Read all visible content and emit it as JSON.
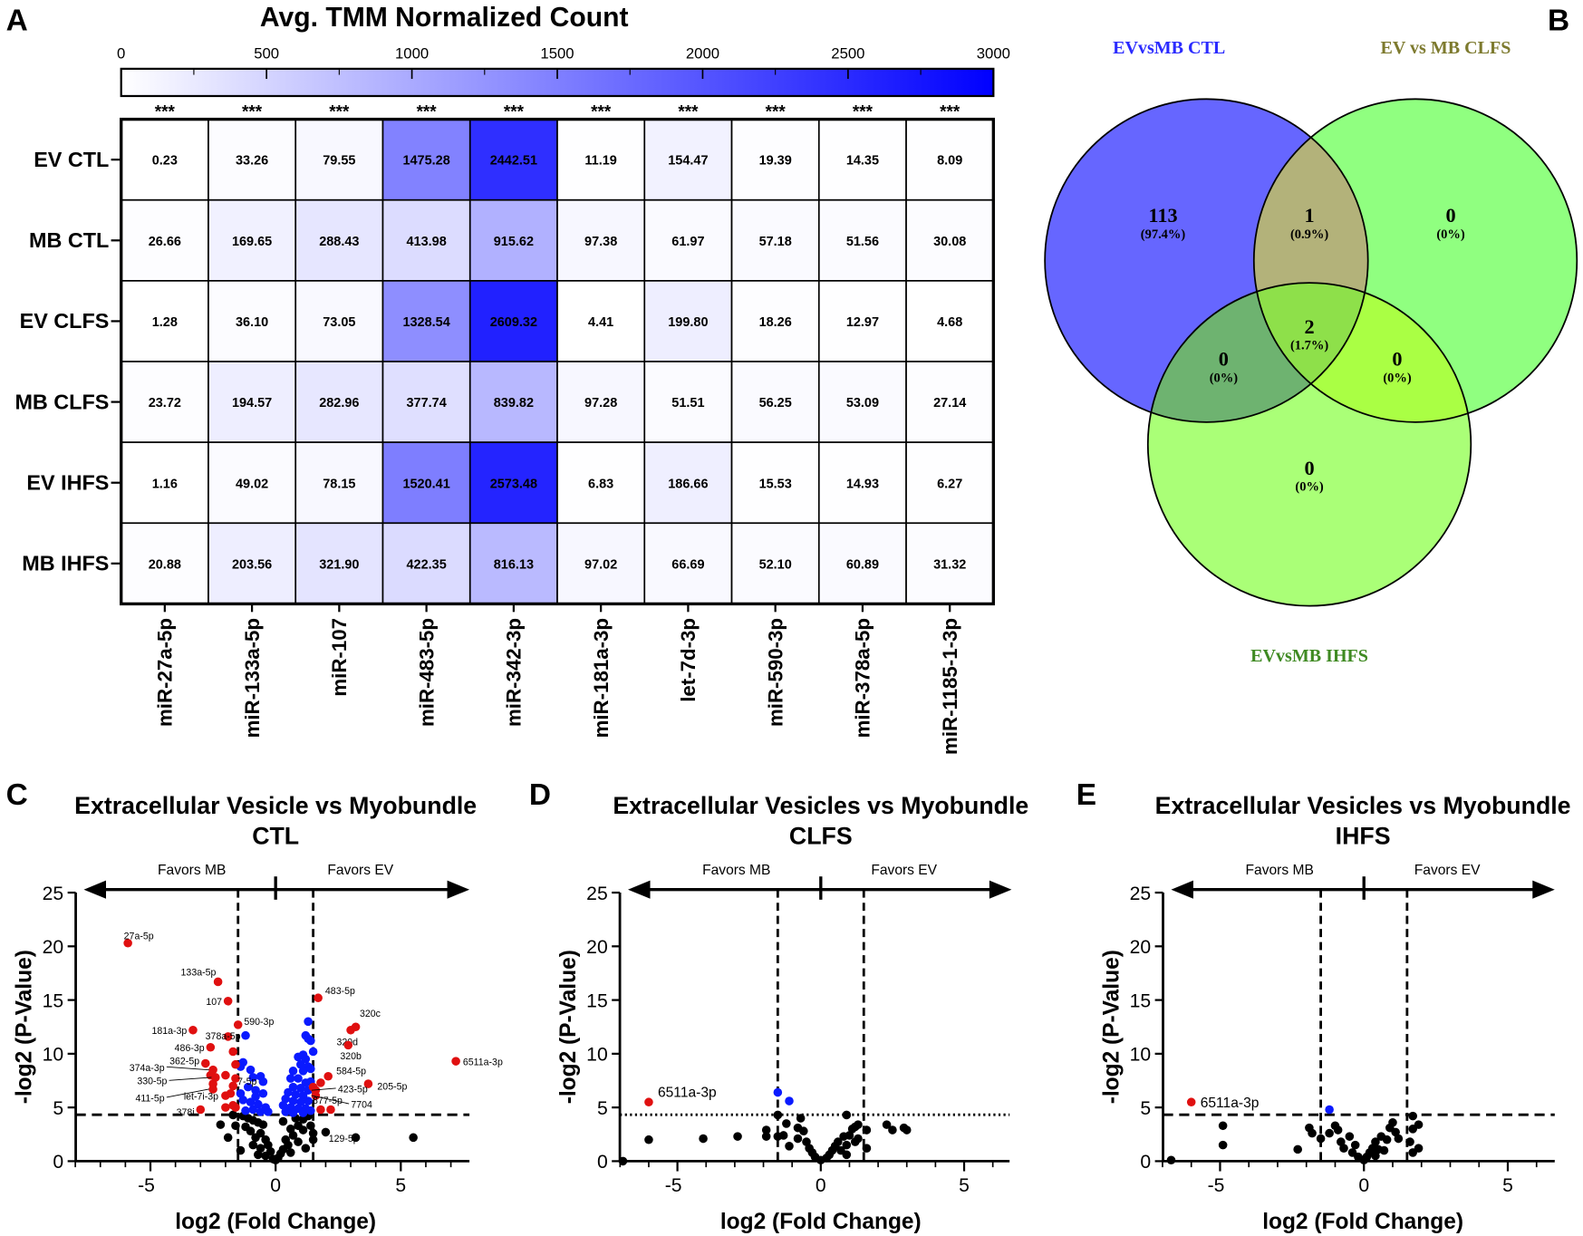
{
  "panel_letters": [
    "A",
    "B",
    "C",
    "D",
    "E"
  ],
  "chart_data": [
    {
      "type": "heatmap",
      "panel": "A",
      "title": "Avg. TMM Normalized Count",
      "colorbar": {
        "range": [
          0,
          3000
        ],
        "ticks": [
          "0",
          "500",
          "1000",
          "1500",
          "2000",
          "2500",
          "3000"
        ],
        "low_color": "#ffffff",
        "high_color": "#0000ff"
      },
      "significance": [
        "***",
        "***",
        "***",
        "***",
        "***",
        "***",
        "***",
        "***",
        "***",
        "***"
      ],
      "rows": [
        "EV CTL",
        "MB CTL",
        "EV CLFS",
        "MB CLFS",
        "EV IHFS",
        "MB IHFS"
      ],
      "columns": [
        "miR-27a-5p",
        "miR-133a-5p",
        "miR-107",
        "miR-483-5p",
        "miR-342-3p",
        "miR-181a-3p",
        "let-7d-3p",
        "miR-590-3p",
        "miR-378a-5p",
        "miR-1185-1-3p"
      ],
      "values": [
        [
          "0.23",
          "33.26",
          "79.55",
          "1475.28",
          "2442.51",
          "11.19",
          "154.47",
          "19.39",
          "14.35",
          "8.09"
        ],
        [
          "26.66",
          "169.65",
          "288.43",
          "413.98",
          "915.62",
          "97.38",
          "61.97",
          "57.18",
          "51.56",
          "30.08"
        ],
        [
          "1.28",
          "36.10",
          "73.05",
          "1328.54",
          "2609.32",
          "4.41",
          "199.80",
          "18.26",
          "12.97",
          "4.68"
        ],
        [
          "23.72",
          "194.57",
          "282.96",
          "377.74",
          "839.82",
          "97.28",
          "51.51",
          "56.25",
          "53.09",
          "27.14"
        ],
        [
          "1.16",
          "49.02",
          "78.15",
          "1520.41",
          "2573.48",
          "6.83",
          "186.66",
          "15.53",
          "14.93",
          "6.27"
        ],
        [
          "20.88",
          "203.56",
          "321.90",
          "422.35",
          "816.13",
          "97.02",
          "66.69",
          "52.10",
          "60.89",
          "31.32"
        ]
      ]
    },
    {
      "type": "venn",
      "panel": "B",
      "sets": [
        {
          "name": "EVvsMB CTL",
          "color": "#6666ff",
          "label_color": "#2b2bff"
        },
        {
          "name": "EV vs MB CLFS",
          "color": "#90ff80",
          "label_color": "#7d7a2e"
        },
        {
          "name": "EVvsMB IHFS",
          "color": "#aaff77",
          "label_color": "#3f8a22"
        }
      ],
      "regions": [
        {
          "id": "ctl_only",
          "count": "113",
          "pct": "(97.4%)"
        },
        {
          "id": "ctl_clfs",
          "count": "1",
          "pct": "(0.9%)"
        },
        {
          "id": "clfs_only",
          "count": "0",
          "pct": "(0%)"
        },
        {
          "id": "all",
          "count": "2",
          "pct": "(1.7%)"
        },
        {
          "id": "ctl_ihfs",
          "count": "0",
          "pct": "(0%)"
        },
        {
          "id": "clfs_ihfs",
          "count": "0",
          "pct": "(0%)"
        },
        {
          "id": "ihfs_only",
          "count": "0",
          "pct": "(0%)"
        }
      ],
      "overlap_colors": {
        "ctl_clfs": "#b3b27a",
        "ctl_ihfs": "#6eb370",
        "clfs_ihfs": "#aaff44",
        "all": "#8ee04a"
      }
    },
    {
      "type": "scatter",
      "panel": "C",
      "title": [
        "Extracellular Vesicle vs Myobundle",
        "CTL"
      ],
      "xlabel": "log2 (Fold Change)",
      "ylabel": "-log2 (P-Value)",
      "xlim": [
        -8,
        7.7
      ],
      "ylim": [
        0,
        25
      ],
      "xticks": [
        "-5",
        "0",
        "5"
      ],
      "yticks": [
        "0",
        "5",
        "10",
        "15",
        "20",
        "25"
      ],
      "direction_labels": [
        "Favors MB",
        "Favors EV"
      ],
      "fc_threshold": 1.5,
      "p_threshold": 4.32,
      "p_threshold_style": "dashed",
      "colors": {
        "significant": "#e01010",
        "fc_only": "#0a1aff",
        "ns": "#000000"
      },
      "red_labeled": [
        {
          "label": "27a-5p",
          "x": -5.9,
          "y": 20.3
        },
        {
          "label": "133a-5p",
          "x": -2.3,
          "y": 16.7
        },
        {
          "label": "107",
          "x": -1.9,
          "y": 14.9
        },
        {
          "label": "590-3p",
          "x": -1.5,
          "y": 12.7
        },
        {
          "label": "181a-3p",
          "x": -3.3,
          "y": 12.2
        },
        {
          "label": "378a-5p",
          "x": -1.9,
          "y": 11.6
        },
        {
          "label": "486-3p",
          "x": -2.6,
          "y": 10.6
        },
        {
          "label": "362-5p",
          "x": -2.8,
          "y": 9.1
        },
        {
          "label": "374a-3p",
          "x": -2.5,
          "y": 8.5
        },
        {
          "label": "330-5p",
          "x": -2.4,
          "y": 7.8
        },
        {
          "label": "411-5p",
          "x": -2.5,
          "y": 6.7
        },
        {
          "label": "let-7i-3p",
          "x": -1.8,
          "y": 6.3
        },
        {
          "label": "7-5p",
          "x": -1.6,
          "y": 7.7
        },
        {
          "label": "378i",
          "x": -3.0,
          "y": 4.8
        },
        {
          "label": "483-5p",
          "x": 1.7,
          "y": 15.2
        },
        {
          "label": "320c",
          "x": 3.2,
          "y": 12.5
        },
        {
          "label": "320d",
          "x": 3.0,
          "y": 12.2
        },
        {
          "label": "320b",
          "x": 2.9,
          "y": 10.8
        },
        {
          "label": "6511a-3p",
          "x": 7.2,
          "y": 9.3
        },
        {
          "label": "584-5p",
          "x": 2.1,
          "y": 7.9
        },
        {
          "label": "205-5p",
          "x": 3.7,
          "y": 7.2
        },
        {
          "label": "423-5p",
          "x": 1.6,
          "y": 6.6
        },
        {
          "label": "7704",
          "x": 1.6,
          "y": 6.1
        },
        {
          "label": "877-5p",
          "x": 1.8,
          "y": 4.8
        },
        {
          "label": "129-5p",
          "x": 2.2,
          "y": 4.8
        }
      ],
      "red": [
        [
          -1.7,
          10.2
        ],
        [
          -1.6,
          9.0
        ],
        [
          -2.0,
          8.0
        ],
        [
          -1.7,
          7.0
        ],
        [
          -2.0,
          6.1
        ],
        [
          -1.7,
          5.2
        ],
        [
          -2.0,
          5.0
        ],
        [
          -1.6,
          5.0
        ],
        [
          -2.6,
          8.0
        ],
        [
          -2.5,
          7.2
        ],
        [
          1.8,
          7.3
        ],
        [
          1.5,
          6.9
        ]
      ],
      "blue": [
        [
          -1.2,
          11.7
        ],
        [
          -1.0,
          8.5
        ],
        [
          -1.3,
          9.2
        ],
        [
          -0.9,
          7.8
        ],
        [
          -0.6,
          7.9
        ],
        [
          -0.5,
          7.4
        ],
        [
          -1.4,
          8.8
        ],
        [
          -1.1,
          6.9
        ],
        [
          -0.8,
          6.6
        ],
        [
          -0.5,
          6.3
        ],
        [
          -1.3,
          5.7
        ],
        [
          -1.0,
          5.5
        ],
        [
          -0.7,
          5.3
        ],
        [
          -0.4,
          5.0
        ],
        [
          -0.9,
          4.8
        ],
        [
          -0.6,
          4.6
        ],
        [
          -1.2,
          4.7
        ],
        [
          -0.3,
          4.6
        ],
        [
          -0.8,
          6.0
        ],
        [
          -1.4,
          6.3
        ],
        [
          1.3,
          13.0
        ],
        [
          1.2,
          11.7
        ],
        [
          1.3,
          11.4
        ],
        [
          1.4,
          11.2
        ],
        [
          1.5,
          10.2
        ],
        [
          0.9,
          9.7
        ],
        [
          1.1,
          9.9
        ],
        [
          1.2,
          9.5
        ],
        [
          1.0,
          9.0
        ],
        [
          1.3,
          8.8
        ],
        [
          0.7,
          8.4
        ],
        [
          1.1,
          8.4
        ],
        [
          1.4,
          8.6
        ],
        [
          0.6,
          7.7
        ],
        [
          0.9,
          7.7
        ],
        [
          1.2,
          7.3
        ],
        [
          1.4,
          7.4
        ],
        [
          0.7,
          6.9
        ],
        [
          1.0,
          6.8
        ],
        [
          1.3,
          6.6
        ],
        [
          0.5,
          6.4
        ],
        [
          0.8,
          6.2
        ],
        [
          1.1,
          6.1
        ],
        [
          0.4,
          5.8
        ],
        [
          0.7,
          5.6
        ],
        [
          1.0,
          5.5
        ],
        [
          1.3,
          5.6
        ],
        [
          0.3,
          5.2
        ],
        [
          0.6,
          5.0
        ],
        [
          0.9,
          4.9
        ],
        [
          1.2,
          4.9
        ],
        [
          0.4,
          4.6
        ],
        [
          0.7,
          4.5
        ],
        [
          1.1,
          4.5
        ],
        [
          1.4,
          4.7
        ]
      ],
      "black": [
        [
          -2.2,
          3.4
        ],
        [
          -1.6,
          3.3
        ],
        [
          -1.3,
          4.2
        ],
        [
          -1.1,
          4.0
        ],
        [
          -0.9,
          3.8
        ],
        [
          -0.7,
          3.6
        ],
        [
          -1.2,
          3.2
        ],
        [
          -0.5,
          3.4
        ],
        [
          -1.0,
          2.8
        ],
        [
          -0.6,
          2.6
        ],
        [
          -0.8,
          2.2
        ],
        [
          -0.4,
          2.0
        ],
        [
          -0.3,
          1.5
        ],
        [
          -0.6,
          1.2
        ],
        [
          -0.2,
          0.9
        ],
        [
          -0.4,
          0.5
        ],
        [
          -0.1,
          0.2
        ],
        [
          0.0,
          0.1
        ],
        [
          0.1,
          0.3
        ],
        [
          0.2,
          0.7
        ],
        [
          0.3,
          1.1
        ],
        [
          0.5,
          1.5
        ],
        [
          0.4,
          2.0
        ],
        [
          0.7,
          2.4
        ],
        [
          0.6,
          3.0
        ],
        [
          0.9,
          3.3
        ],
        [
          0.3,
          3.7
        ],
        [
          0.8,
          4.0
        ],
        [
          1.1,
          3.9
        ],
        [
          1.3,
          4.2
        ],
        [
          1.1,
          2.9
        ],
        [
          1.4,
          3.3
        ],
        [
          1.5,
          2.6
        ],
        [
          1.5,
          2.0
        ],
        [
          2.0,
          2.7
        ],
        [
          3.2,
          2.2
        ],
        [
          5.5,
          2.2
        ],
        [
          -1.9,
          2.2
        ],
        [
          -0.9,
          1.5
        ],
        [
          -0.7,
          0.6
        ],
        [
          0.9,
          1.8
        ],
        [
          1.2,
          1.2
        ],
        [
          0.6,
          0.8
        ],
        [
          -1.7,
          4.3
        ],
        [
          -1.4,
          1.0
        ]
      ]
    },
    {
      "type": "scatter",
      "panel": "D",
      "title": [
        "Extracellular Vesicles vs Myobundle",
        "CLFS"
      ],
      "xlabel": "log2 (Fold Change)",
      "ylabel": "-log2 (P-Value)",
      "xlim": [
        -7,
        6.6
      ],
      "ylim": [
        0,
        25
      ],
      "xticks": [
        "-5",
        "0",
        "5"
      ],
      "yticks": [
        "0",
        "5",
        "10",
        "15",
        "20",
        "25"
      ],
      "direction_labels": [
        "Favors MB",
        "Favors EV"
      ],
      "fc_threshold": 1.5,
      "p_threshold": 4.32,
      "p_threshold_style": "dotted",
      "red_labeled": [
        {
          "label": "6511a-3p",
          "x": -6.0,
          "y": 5.5
        }
      ],
      "red": [],
      "blue": [
        [
          -1.5,
          6.4
        ],
        [
          -1.1,
          5.6
        ]
      ],
      "black": [
        [
          -6.9,
          0.0
        ],
        [
          -6.0,
          2.0
        ],
        [
          -4.1,
          2.1
        ],
        [
          -2.9,
          2.3
        ],
        [
          -1.9,
          2.3
        ],
        [
          -1.9,
          2.9
        ],
        [
          -1.5,
          2.3
        ],
        [
          -1.5,
          4.3
        ],
        [
          -1.3,
          2.4
        ],
        [
          -1.2,
          3.5
        ],
        [
          -1.1,
          1.4
        ],
        [
          -0.8,
          2.1
        ],
        [
          -0.8,
          3.1
        ],
        [
          -0.7,
          4.0
        ],
        [
          -0.6,
          2.8
        ],
        [
          -0.5,
          1.8
        ],
        [
          -0.4,
          1.2
        ],
        [
          -0.3,
          0.8
        ],
        [
          -0.2,
          0.4
        ],
        [
          0,
          0.1
        ],
        [
          0.2,
          0.3
        ],
        [
          0.3,
          0.6
        ],
        [
          0.4,
          1.0
        ],
        [
          0.5,
          1.4
        ],
        [
          0.6,
          1.8
        ],
        [
          0.7,
          1.0
        ],
        [
          0.8,
          2.3
        ],
        [
          0.9,
          1.5
        ],
        [
          1.0,
          2.4
        ],
        [
          1.1,
          3.0
        ],
        [
          1.2,
          3.2
        ],
        [
          1.3,
          2.1
        ],
        [
          1.2,
          1.8
        ],
        [
          0.9,
          0.6
        ],
        [
          0.9,
          4.3
        ],
        [
          1.3,
          3.4
        ],
        [
          1.6,
          2.9
        ],
        [
          1.6,
          1.2
        ],
        [
          2.3,
          3.4
        ],
        [
          2.5,
          2.9
        ],
        [
          2.9,
          3.1
        ],
        [
          3.0,
          2.9
        ]
      ]
    },
    {
      "type": "scatter",
      "panel": "E",
      "title": [
        "Extracellular Vesicles vs Myobundle",
        "IHFS"
      ],
      "xlabel": "log2 (Fold Change)",
      "ylabel": "-log2 (P-Value)",
      "xlim": [
        -7,
        6.6
      ],
      "ylim": [
        0,
        25
      ],
      "xticks": [
        "-5",
        "0",
        "5"
      ],
      "yticks": [
        "0",
        "5",
        "10",
        "15",
        "20",
        "25"
      ],
      "direction_labels": [
        "Favors MB",
        "Favors EV"
      ],
      "fc_threshold": 1.5,
      "p_threshold": 4.32,
      "p_threshold_style": "dashed",
      "red_labeled": [
        {
          "label": "6511a-3p",
          "x": -6.0,
          "y": 5.5
        }
      ],
      "red": [],
      "blue": [
        [
          -1.2,
          4.8
        ]
      ],
      "black": [
        [
          -6.7,
          0.1
        ],
        [
          -4.9,
          3.3
        ],
        [
          -4.9,
          1.5
        ],
        [
          -2.3,
          1.1
        ],
        [
          -1.9,
          3.1
        ],
        [
          -1.8,
          2.6
        ],
        [
          -1.5,
          2.1
        ],
        [
          -1.2,
          2.6
        ],
        [
          -1.0,
          3.3
        ],
        [
          -0.9,
          2.9
        ],
        [
          -0.8,
          1.8
        ],
        [
          -0.7,
          1.2
        ],
        [
          -0.5,
          2.3
        ],
        [
          -0.4,
          0.8
        ],
        [
          -0.3,
          1.5
        ],
        [
          -0.2,
          0.4
        ],
        [
          0,
          0.1
        ],
        [
          0.1,
          0.4
        ],
        [
          0.2,
          0.8
        ],
        [
          0.3,
          1.2
        ],
        [
          0.4,
          1.8
        ],
        [
          0.5,
          1.1
        ],
        [
          0.6,
          2.3
        ],
        [
          0.8,
          2.0
        ],
        [
          0.9,
          3.1
        ],
        [
          1.0,
          3.6
        ],
        [
          1.1,
          2.7
        ],
        [
          1.2,
          2.1
        ],
        [
          0.7,
          1.0
        ],
        [
          0.4,
          0.5
        ],
        [
          1.7,
          4.2
        ],
        [
          1.7,
          3.0
        ],
        [
          1.6,
          1.8
        ],
        [
          1.7,
          0.8
        ],
        [
          1.9,
          3.4
        ],
        [
          1.9,
          1.2
        ]
      ]
    }
  ]
}
